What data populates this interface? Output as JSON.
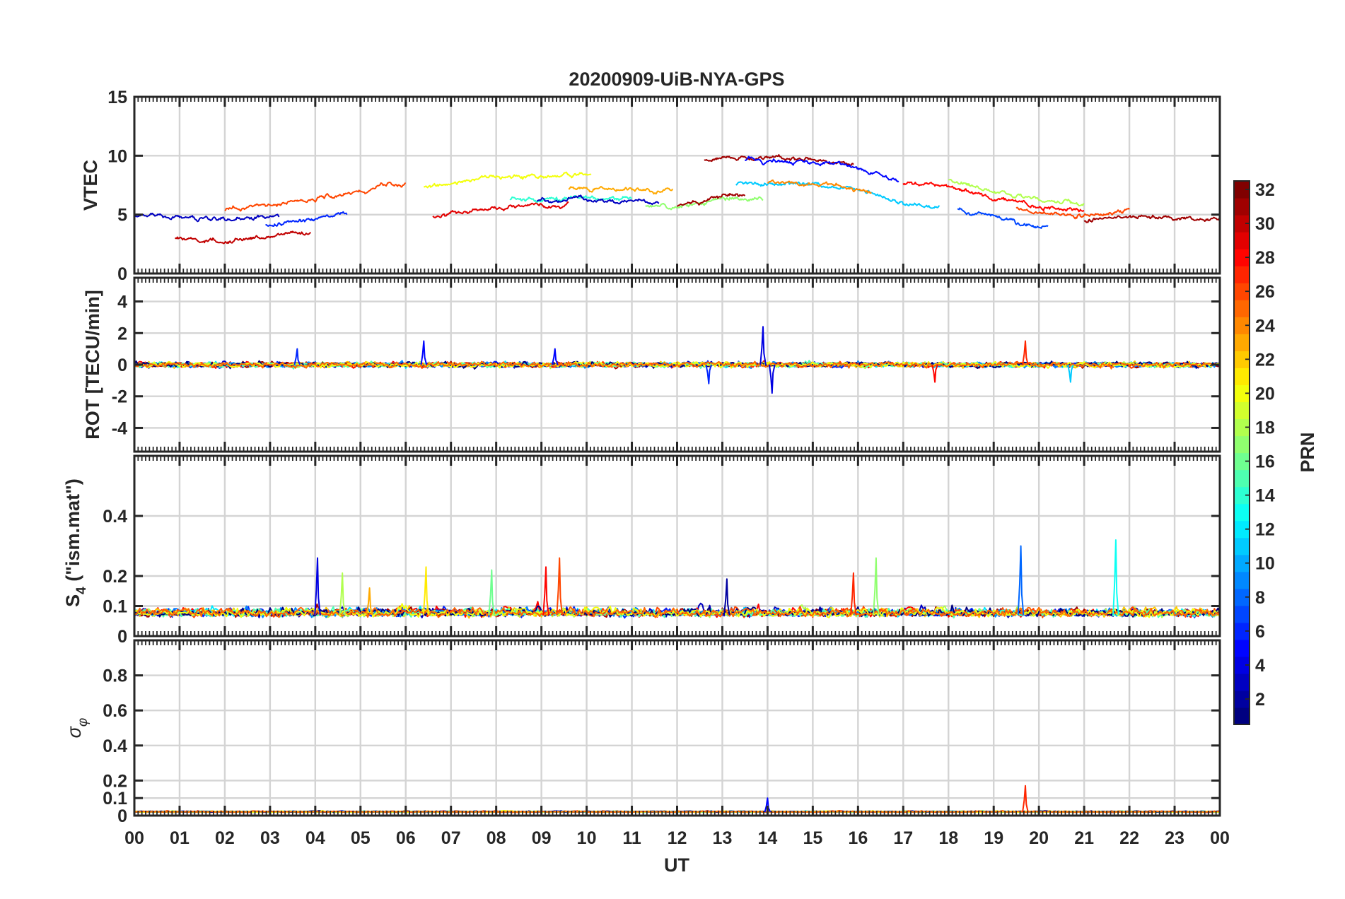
{
  "chart_data": {
    "type": "line",
    "title": "20200909-UiB-NYA-GPS",
    "xlabel": "UT",
    "xlim_hours": [
      0,
      24
    ],
    "x_tick_labels": [
      "00",
      "01",
      "02",
      "03",
      "04",
      "05",
      "06",
      "07",
      "08",
      "09",
      "10",
      "11",
      "12",
      "13",
      "14",
      "15",
      "16",
      "17",
      "18",
      "19",
      "20",
      "21",
      "22",
      "23",
      "00"
    ],
    "colorbar": {
      "label": "PRN",
      "range": [
        1,
        32
      ],
      "tick_labels": [
        "2",
        "4",
        "6",
        "8",
        "10",
        "12",
        "14",
        "16",
        "18",
        "20",
        "22",
        "24",
        "26",
        "28",
        "30",
        "32"
      ],
      "colormap": "jet"
    },
    "panels": [
      {
        "id": "vtec",
        "ylabel": "VTEC",
        "ylim": [
          0,
          15
        ],
        "y_ticks": [
          0,
          5,
          10,
          15
        ],
        "y_tick_labels": [
          "0",
          "5",
          "10",
          "15"
        ],
        "typical_profile_hours": [
          0,
          2,
          4,
          6,
          8,
          10,
          12,
          13,
          14,
          15,
          16,
          17,
          18,
          19,
          20,
          21,
          22,
          23,
          24
        ],
        "typical_profile_values": [
          4.7,
          4.3,
          5.2,
          6.6,
          7.6,
          7.8,
          7.6,
          8.4,
          8.4,
          8.3,
          7.8,
          6.6,
          6.4,
          5.4,
          4.6,
          4.4,
          4.8,
          4.7,
          4.6
        ],
        "series": [
          {
            "prn": 3,
            "start": 0.0,
            "end": 3.2,
            "level": 4.6
          },
          {
            "prn": 30,
            "start": 0.9,
            "end": 3.9,
            "level": 2.9
          },
          {
            "prn": 6,
            "start": 2.9,
            "end": 4.7,
            "level": 4.5
          },
          {
            "prn": 26,
            "start": 2.0,
            "end": 6.0,
            "level": 6.3
          },
          {
            "prn": 20,
            "start": 6.4,
            "end": 10.1,
            "level": 8.2
          },
          {
            "prn": 29,
            "start": 6.6,
            "end": 9.6,
            "level": 5.6
          },
          {
            "prn": 14,
            "start": 8.3,
            "end": 11.0,
            "level": 6.4
          },
          {
            "prn": 23,
            "start": 9.6,
            "end": 11.9,
            "level": 7.2
          },
          {
            "prn": 3,
            "start": 8.9,
            "end": 11.6,
            "level": 6.2
          },
          {
            "prn": 17,
            "start": 11.3,
            "end": 13.9,
            "level": 6.1
          },
          {
            "prn": 31,
            "start": 12.0,
            "end": 13.5,
            "level": 6.4
          },
          {
            "prn": 31,
            "start": 12.6,
            "end": 15.9,
            "level": 9.8
          },
          {
            "prn": 5,
            "start": 13.5,
            "end": 16.9,
            "level": 9.4
          },
          {
            "prn": 11,
            "start": 13.3,
            "end": 17.8,
            "level": 7.3
          },
          {
            "prn": 24,
            "start": 14.0,
            "end": 16.3,
            "level": 7.6
          },
          {
            "prn": 28,
            "start": 17.0,
            "end": 21.0,
            "level": 6.4
          },
          {
            "prn": 18,
            "start": 18.0,
            "end": 21.0,
            "level": 6.6
          },
          {
            "prn": 26,
            "start": 19.5,
            "end": 22.0,
            "level": 5.0
          },
          {
            "prn": 7,
            "start": 18.2,
            "end": 20.2,
            "level": 4.6
          },
          {
            "prn": 31,
            "start": 21.0,
            "end": 24.0,
            "level": 4.8
          }
        ]
      },
      {
        "id": "rot",
        "ylabel": "ROT [TECU/min]",
        "ylim": [
          -5.5,
          5.5
        ],
        "y_ticks": [
          -4,
          -2,
          0,
          2,
          4
        ],
        "y_tick_labels": [
          "-4",
          "-2",
          "0",
          "2",
          "4"
        ],
        "baseline": 0,
        "noise_amplitude": 0.25,
        "notable_spikes": [
          {
            "hour": 13.9,
            "value": 2.4,
            "prn": 4
          },
          {
            "hour": 14.1,
            "value": -1.8,
            "prn": 4
          },
          {
            "hour": 12.7,
            "value": -1.2,
            "prn": 6
          },
          {
            "hour": 6.4,
            "value": 1.5,
            "prn": 5
          },
          {
            "hour": 19.7,
            "value": 1.5,
            "prn": 27
          },
          {
            "hour": 3.6,
            "value": 1.0,
            "prn": 6
          },
          {
            "hour": 17.7,
            "value": -1.1,
            "prn": 28
          },
          {
            "hour": 20.7,
            "value": -1.1,
            "prn": 11
          },
          {
            "hour": 9.3,
            "value": 1.0,
            "prn": 5
          }
        ]
      },
      {
        "id": "s4",
        "ylabel": "S4 (\"ism.mat\")",
        "ylim": [
          0,
          0.6
        ],
        "y_ticks": [
          0,
          0.1,
          0.2,
          0.4
        ],
        "y_tick_labels": [
          "0",
          "0.1",
          "0.2",
          "0.4"
        ],
        "baseline": 0.07,
        "notable_peaks": [
          {
            "hour": 4.05,
            "value": 0.26,
            "prn": 4
          },
          {
            "hour": 9.4,
            "value": 0.26,
            "prn": 26
          },
          {
            "hour": 9.1,
            "value": 0.23,
            "prn": 28
          },
          {
            "hour": 7.9,
            "value": 0.22,
            "prn": 16
          },
          {
            "hour": 6.45,
            "value": 0.23,
            "prn": 21
          },
          {
            "hour": 16.4,
            "value": 0.26,
            "prn": 17
          },
          {
            "hour": 19.6,
            "value": 0.3,
            "prn": 8
          },
          {
            "hour": 21.7,
            "value": 0.32,
            "prn": 13
          },
          {
            "hour": 15.9,
            "value": 0.21,
            "prn": 27
          },
          {
            "hour": 4.6,
            "value": 0.21,
            "prn": 18
          },
          {
            "hour": 13.1,
            "value": 0.19,
            "prn": 2
          },
          {
            "hour": 5.2,
            "value": 0.16,
            "prn": 23
          }
        ]
      },
      {
        "id": "sigma_phi",
        "ylabel": "σφ",
        "ylim": [
          0,
          1
        ],
        "y_ticks": [
          0,
          0.1,
          0.2,
          0.4,
          0.6,
          0.8
        ],
        "y_tick_labels": [
          "0",
          "0.1",
          "0.2",
          "0.4",
          "0.6",
          "0.8"
        ],
        "baseline": 0.02,
        "notable_peaks": [
          {
            "hour": 19.7,
            "value": 0.17,
            "prn": 27
          },
          {
            "hour": 14.0,
            "value": 0.1,
            "prn": 5
          }
        ]
      }
    ]
  }
}
